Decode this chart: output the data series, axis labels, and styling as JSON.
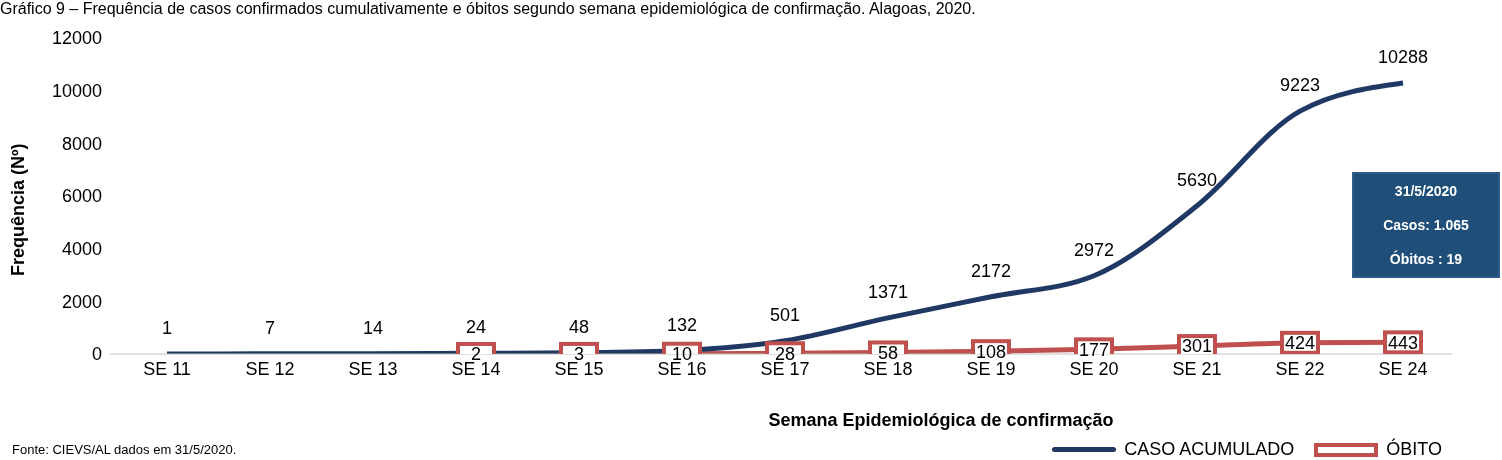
{
  "chart_data": {
    "type": "line",
    "title": "Gráfico 9 – Frequência de casos confirmados cumulativamente e óbitos segundo semana epidemiológica de confirmação. Alagoas, 2020.",
    "xlabel": "Semana Epidemiológica de confirmação",
    "ylabel": "Frequência (Nº)",
    "categories": [
      "SE 11",
      "SE 12",
      "SE 13",
      "SE 14",
      "SE 15",
      "SE 16",
      "SE 17",
      "SE 18",
      "SE 19",
      "SE 20",
      "SE 21",
      "SE 22",
      "SE 24"
    ],
    "series": [
      {
        "name": "CASO ACUMULADO",
        "color": "#203864",
        "marker": "none",
        "values": [
          1,
          7,
          14,
          24,
          48,
          132,
          501,
          1371,
          2172,
          2972,
          5630,
          9223,
          10288
        ]
      },
      {
        "name": "ÓBITO",
        "color": "#c0504d",
        "marker": "square",
        "values": [
          null,
          null,
          null,
          2,
          3,
          10,
          28,
          58,
          108,
          177,
          301,
          424,
          443
        ]
      }
    ],
    "ylim": [
      0,
      12000
    ],
    "yticks": [
      0,
      2000,
      4000,
      6000,
      8000,
      10000,
      12000
    ],
    "grid": false,
    "data_labels": true,
    "legend": "bottom right",
    "annotations": [
      "31/5/2020",
      "Casos: 1.065",
      "Óbitos : 19",
      "Fonte: CIEVS/AL dados em 31/5/2020."
    ]
  }
}
